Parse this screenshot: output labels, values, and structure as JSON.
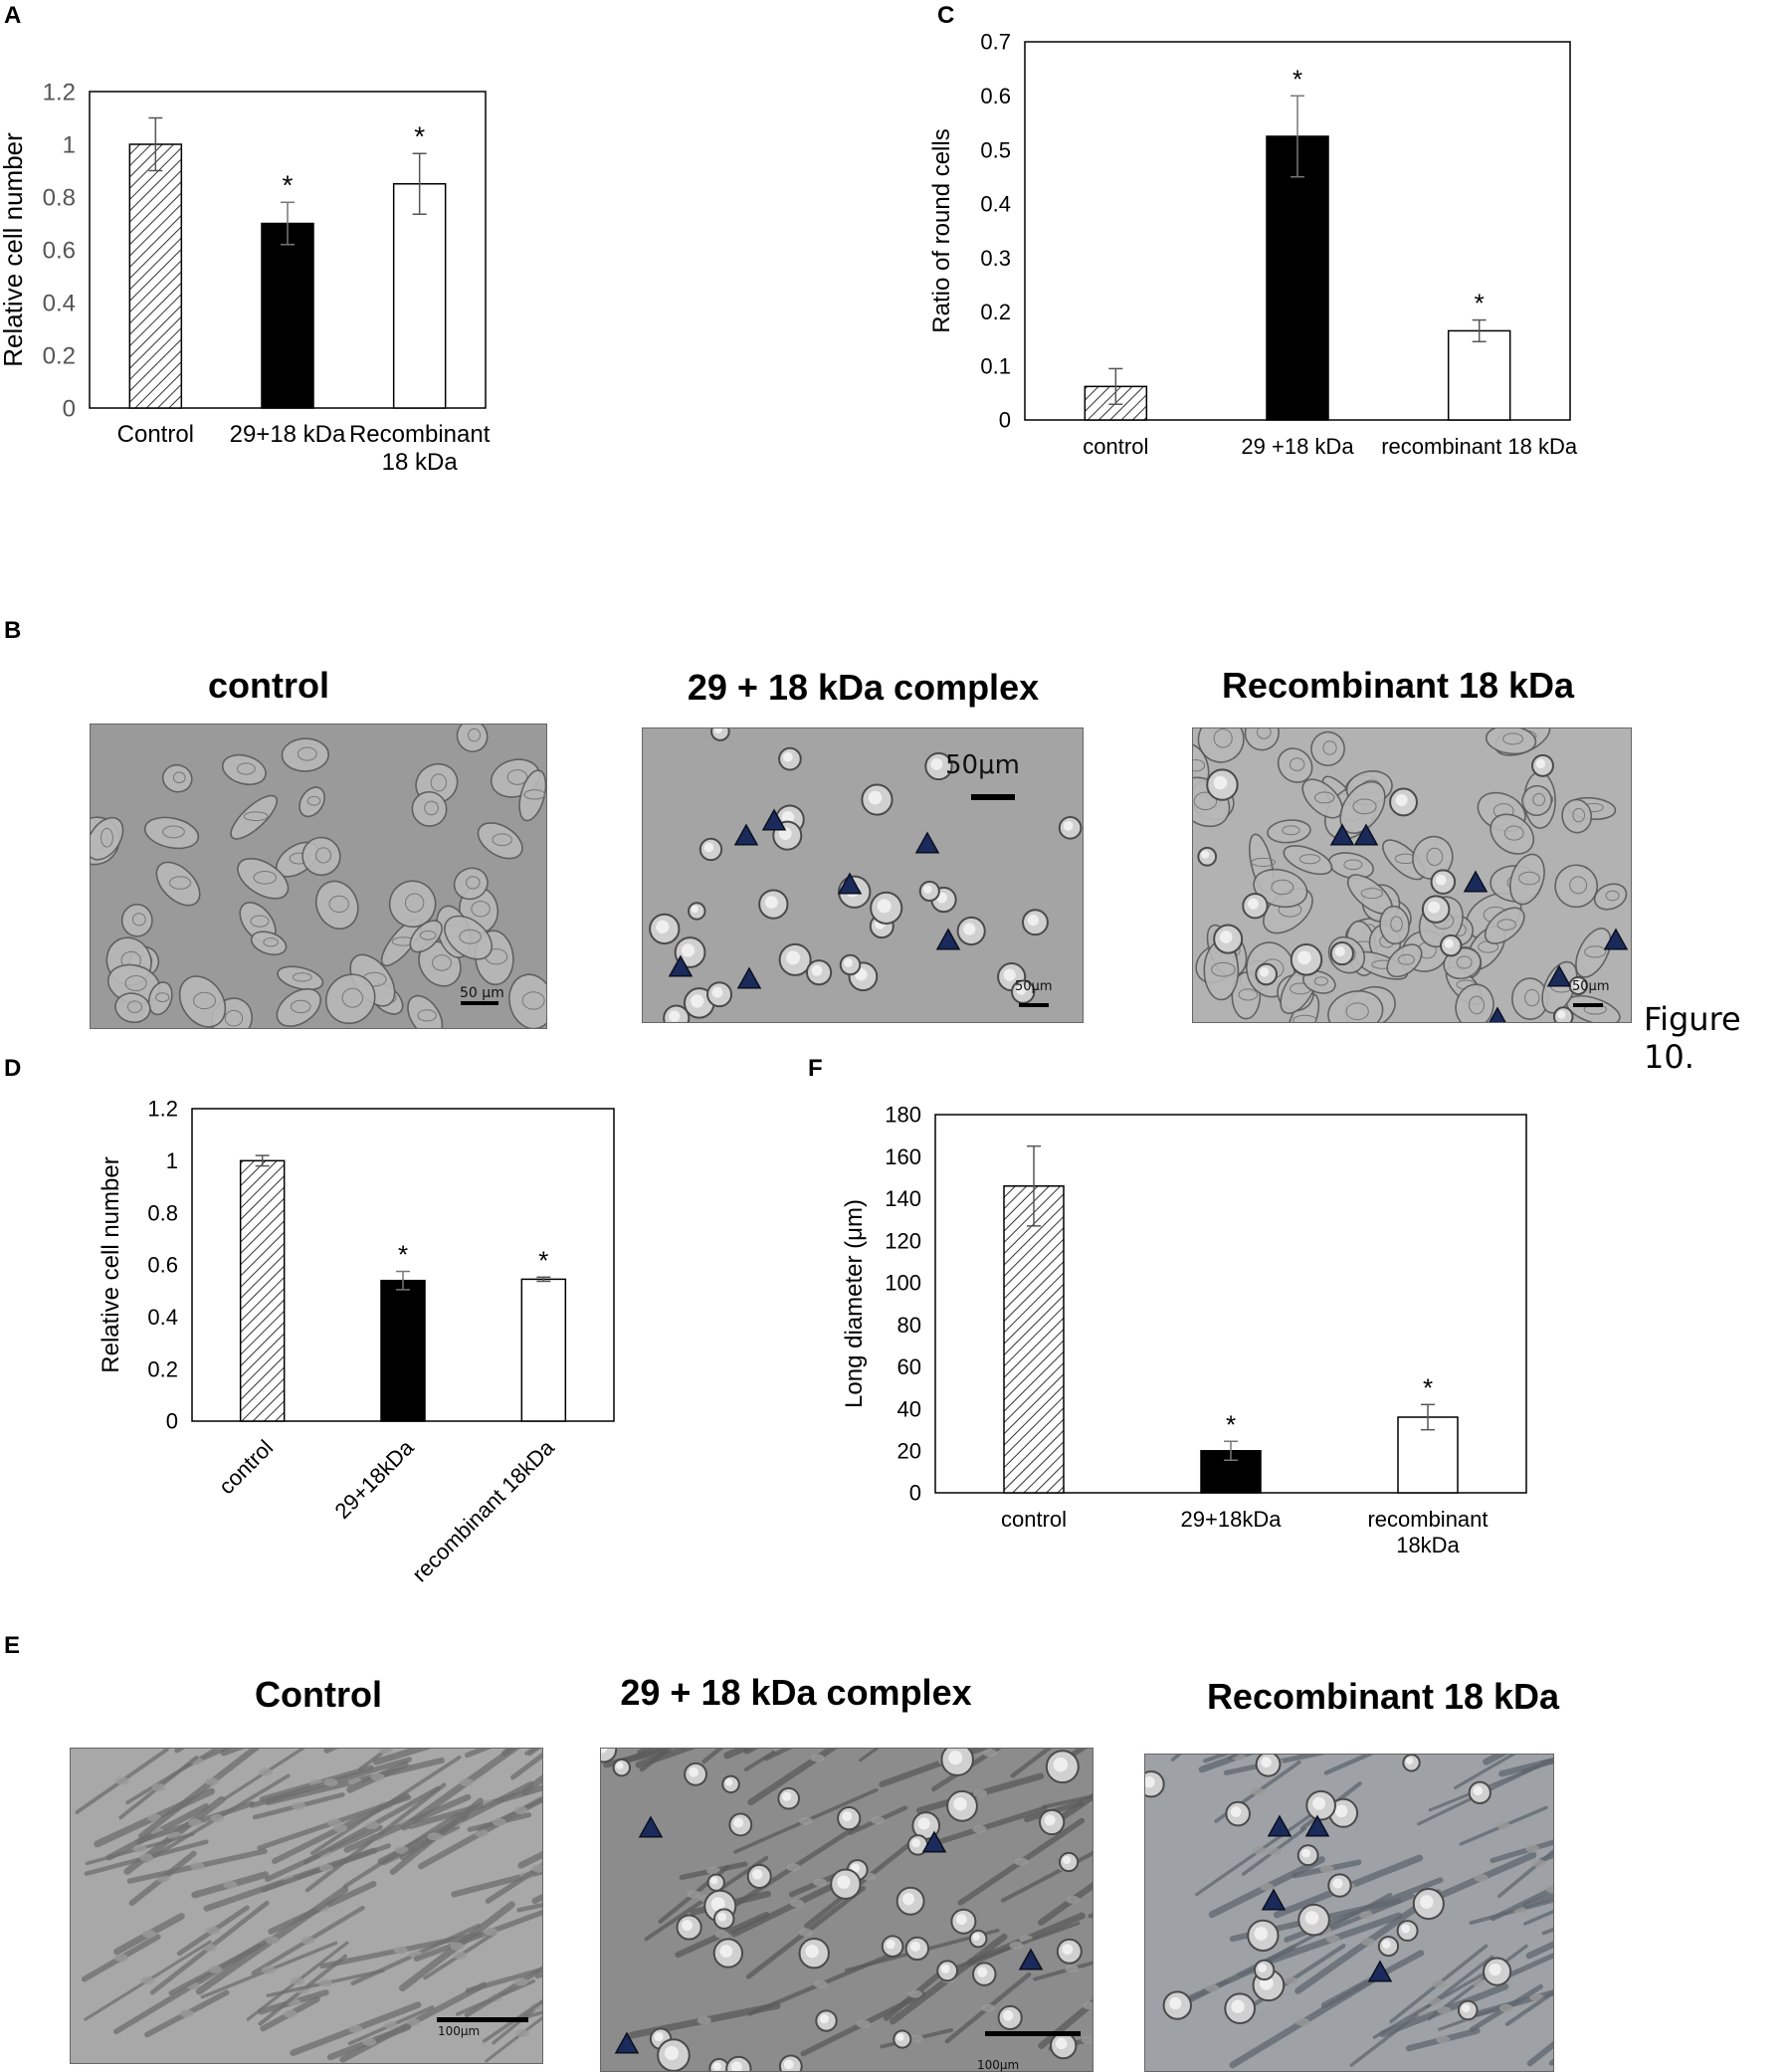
{
  "panels": {
    "A": "A",
    "B": "B",
    "C": "C",
    "D": "D",
    "E": "E",
    "F": "F"
  },
  "figure_caption": "Figure 10.",
  "chart_data": [
    {
      "panel": "A",
      "type": "bar",
      "categories": [
        "Control",
        "29+18 kDa",
        "Recombinant 18 kDa"
      ],
      "category_lines": [
        [
          "Control"
        ],
        [
          "29+18 kDa"
        ],
        [
          "Recombinant",
          "18 kDa"
        ]
      ],
      "values": [
        1.0,
        0.7,
        0.85
      ],
      "errors": [
        0.1,
        0.08,
        0.115
      ],
      "significance": [
        "",
        "*",
        "*"
      ],
      "fills": [
        "hatch",
        "#000000",
        "#ffffff"
      ],
      "ylabel": "Relative cell number",
      "ylim": [
        0,
        1.2
      ],
      "yticks": [
        "0",
        "0.2",
        "0.4",
        "0.6",
        "0.8",
        "1",
        "1.2"
      ],
      "tick_label_color": "#555555",
      "grid": false,
      "x_label_rotation": 0
    },
    {
      "panel": "C",
      "type": "bar",
      "categories": [
        "control",
        "29 +18 kDa",
        "recombinant 18 kDa"
      ],
      "category_lines": [
        [
          "control"
        ],
        [
          "29 +18 kDa"
        ],
        [
          "recombinant 18 kDa"
        ]
      ],
      "values": [
        0.062,
        0.525,
        0.165
      ],
      "errors": [
        0.033,
        0.075,
        0.02
      ],
      "significance": [
        "",
        "*",
        "*"
      ],
      "fills": [
        "hatch",
        "#000000",
        "#ffffff"
      ],
      "ylabel": "Ratio of round cells",
      "ylim": [
        0,
        0.7
      ],
      "yticks": [
        "0",
        "0.1",
        "0.2",
        "0.3",
        "0.4",
        "0.5",
        "0.6",
        "0.7"
      ],
      "tick_label_color": "#000000",
      "grid": false,
      "x_label_rotation": 0
    },
    {
      "panel": "D",
      "type": "bar",
      "categories": [
        "control",
        "29+18kDa",
        "recombinant 18kDa"
      ],
      "category_lines": [
        [
          "control"
        ],
        [
          "29+18kDa"
        ],
        [
          "recombinant 18kDa"
        ]
      ],
      "values": [
        1.0,
        0.54,
        0.545
      ],
      "errors": [
        0.02,
        0.035,
        0.008
      ],
      "significance": [
        "",
        "*",
        "*"
      ],
      "fills": [
        "hatch",
        "#000000",
        "#ffffff"
      ],
      "ylabel": "Relative cell number",
      "ylim": [
        0,
        1.2
      ],
      "yticks": [
        "0",
        "0.2",
        "0.4",
        "0.6",
        "0.8",
        "1",
        "1.2"
      ],
      "tick_label_color": "#000000",
      "grid": false,
      "x_label_rotation": -45
    },
    {
      "panel": "F",
      "type": "bar",
      "categories": [
        "control",
        "29+18kDa",
        "recombinant 18kDa"
      ],
      "category_lines": [
        [
          "control"
        ],
        [
          "29+18kDa"
        ],
        [
          "recombinant",
          "18kDa"
        ]
      ],
      "values": [
        146,
        20,
        36
      ],
      "errors": [
        19,
        4.5,
        6
      ],
      "significance": [
        "",
        "*",
        "*"
      ],
      "fills": [
        "hatch",
        "#000000",
        "#ffffff"
      ],
      "ylabel": "Long diameter (μm)",
      "ylim": [
        0,
        180
      ],
      "yticks": [
        "0",
        "20",
        "40",
        "60",
        "80",
        "100",
        "120",
        "140",
        "160",
        "180"
      ],
      "tick_label_color": "#000000",
      "grid": false,
      "x_label_rotation": 0
    }
  ],
  "micrographs": {
    "B": {
      "titles": [
        "control",
        "29 + 18 kDa complex",
        "Recombinant 18 kDa"
      ],
      "scale_labels": [
        "50 μm",
        "50μm",
        "50μm",
        "50μm"
      ],
      "cell_style": "rounded-epithelial"
    },
    "E": {
      "titles": [
        "Control",
        "29 + 18 kDa complex",
        "Recombinant 18 kDa"
      ],
      "scale_labels": [
        "100μm",
        "100μm"
      ],
      "cell_style": "spindle-fibroblast"
    },
    "marker_color": "#1a2a5a"
  }
}
